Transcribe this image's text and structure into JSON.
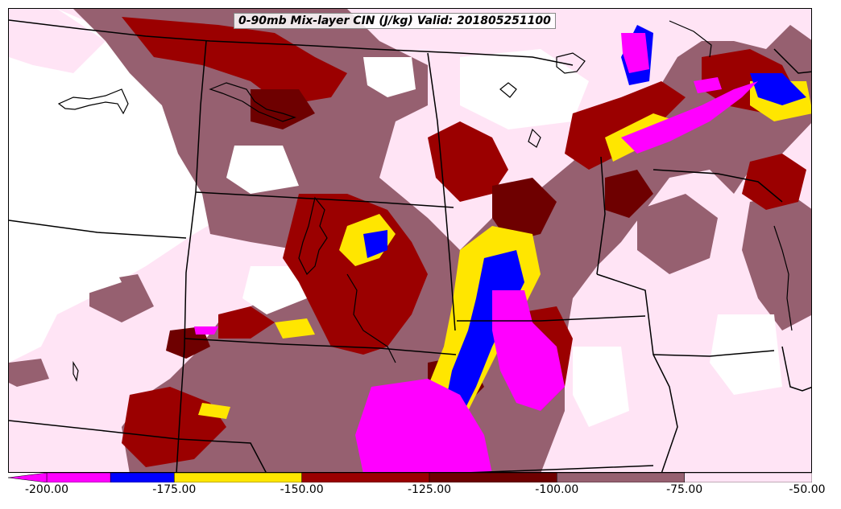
{
  "title": "0-90mb Mix-layer CIN (J/kg) Valid: 201805251100",
  "colorbar": {
    "tick_labels": [
      "-200.00",
      "-175.00",
      "-150.00",
      "-125.00",
      "-100.00",
      "-75.00",
      "-50.00"
    ],
    "min": -200,
    "max": -50,
    "bins": [
      {
        "from": -200,
        "to": -187.5,
        "color": "#ff00ff"
      },
      {
        "from": -187.5,
        "to": -175,
        "color": "#0000ff"
      },
      {
        "from": -175,
        "to": -150,
        "color": "#ffe600"
      },
      {
        "from": -150,
        "to": -125,
        "color": "#9b0000"
      },
      {
        "from": -125,
        "to": -100,
        "color": "#6e0000"
      },
      {
        "from": -100,
        "to": -75,
        "color": "#966070"
      },
      {
        "from": -75,
        "to": -50,
        "color": "#ffe4f5"
      }
    ],
    "extend": "min"
  },
  "map": {
    "background": "#ffffff",
    "boundary_color": "#000000"
  }
}
